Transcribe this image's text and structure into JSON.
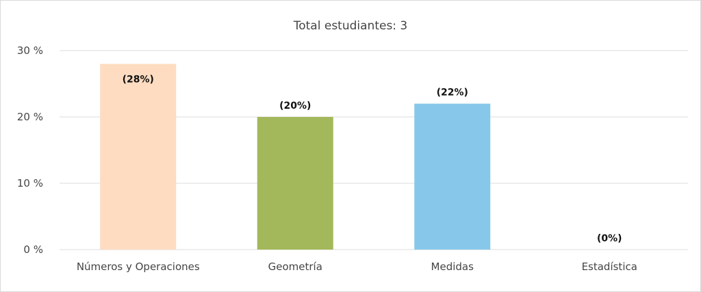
{
  "chart_data": {
    "type": "bar",
    "title": "Total estudiantes: 3",
    "categories": [
      "Números y Operaciones",
      "Geometría",
      "Medidas",
      "Estadística"
    ],
    "values": [
      28,
      20,
      22,
      0
    ],
    "data_labels": [
      "(28%)",
      "(20%)",
      "(22%)",
      "(0%)"
    ],
    "colors": [
      "#fddcc1",
      "#a3b85a",
      "#87c8ea",
      "#cccccc"
    ],
    "ylim": [
      0,
      30
    ],
    "yticks": [
      0,
      10,
      20,
      30
    ],
    "ytick_labels": [
      "0 %",
      "10 %",
      "20 %",
      "30 %"
    ],
    "xlabel": "",
    "ylabel": "",
    "grid": true,
    "legend": "none"
  }
}
